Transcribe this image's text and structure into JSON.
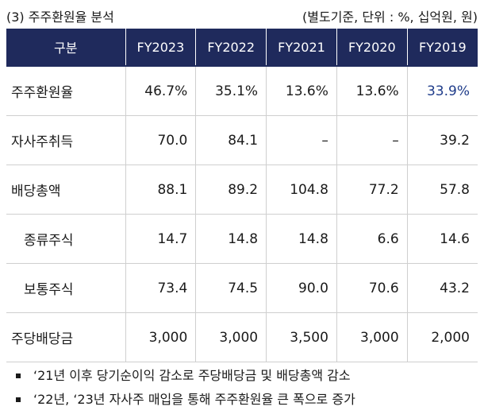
{
  "caption": {
    "title": "(3) 주주환원율 분석",
    "unit": "(별도기준, 단위 : %, 십억원, 원)"
  },
  "table": {
    "headers": [
      "구분",
      "FY2023",
      "FY2022",
      "FY2021",
      "FY2020",
      "FY2019"
    ],
    "rows": [
      {
        "label": "주주환원율",
        "values": [
          "46.7%",
          "35.1%",
          "13.6%",
          "13.6%",
          "33.9%"
        ]
      },
      {
        "label": "자사주취득",
        "values": [
          "70.0",
          "84.1",
          "–",
          "–",
          "39.2"
        ]
      },
      {
        "label": "배당총액",
        "values": [
          "88.1",
          "89.2",
          "104.8",
          "77.2",
          "57.8"
        ]
      },
      {
        "label": "종류주식",
        "values": [
          "14.7",
          "14.8",
          "14.8",
          "6.6",
          "14.6"
        ]
      },
      {
        "label": "보통주식",
        "values": [
          "73.4",
          "74.5",
          "90.0",
          "70.6",
          "43.2"
        ]
      },
      {
        "label": "주당배당금",
        "values": [
          "3,000",
          "3,000",
          "3,500",
          "3,000",
          "2,000"
        ]
      }
    ]
  },
  "notes": [
    "‘21년 이후 당기순이익 감소로 주당배당금 및 배당총액 감소",
    "‘22년, ‘23년 자사주 매입을 통해 주주환원율 큰 폭으로 증가"
  ],
  "colors": {
    "header_bg": "#1f2a5c",
    "highlight": "#1f3c8a"
  }
}
